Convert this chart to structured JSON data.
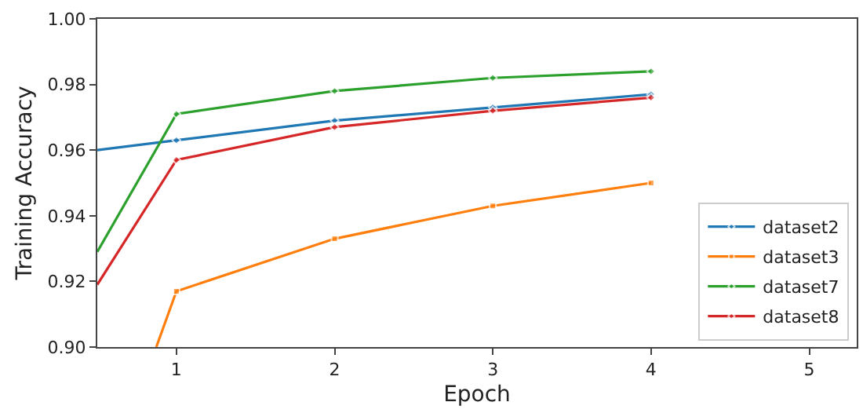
{
  "chart_data": {
    "type": "line",
    "xlabel": "Epoch",
    "ylabel": "Training Accuracy",
    "xlim": [
      0.5,
      5.3
    ],
    "xticks": [
      1,
      2,
      3,
      4,
      5
    ],
    "ylim": [
      0.9,
      1.0
    ],
    "yticks": [
      {
        "value": 0.9,
        "label": "0.90"
      },
      0.92,
      0.94,
      0.96,
      0.98,
      {
        "value": 1.0,
        "label": "1.00"
      }
    ],
    "grid": false,
    "legend": "bottom right",
    "line_style": "solid",
    "series": [
      {
        "name": "dataset2",
        "color": "#1f77b4",
        "marker": "diamond",
        "x": [
          0.5,
          1,
          2,
          3,
          4
        ],
        "values": [
          0.96,
          0.963,
          0.969,
          0.973,
          0.977
        ]
      },
      {
        "name": "dataset3",
        "color": "#ff7f0e",
        "marker": "square",
        "x": [
          0.873,
          1,
          2,
          3,
          4
        ],
        "values": [
          0.9,
          0.917,
          0.933,
          0.943,
          0.95
        ]
      },
      {
        "name": "dataset7",
        "color": "#2ca02c",
        "marker": "diamond",
        "x": [
          0.5,
          1,
          2,
          3,
          4
        ],
        "values": [
          0.929,
          0.971,
          0.978,
          0.982,
          0.984
        ]
      },
      {
        "name": "dataset8",
        "color": "#d62728",
        "marker": "diamond",
        "x": [
          0.5,
          1,
          2,
          3,
          4
        ],
        "values": [
          0.919,
          0.957,
          0.967,
          0.972,
          0.976
        ]
      }
    ]
  }
}
